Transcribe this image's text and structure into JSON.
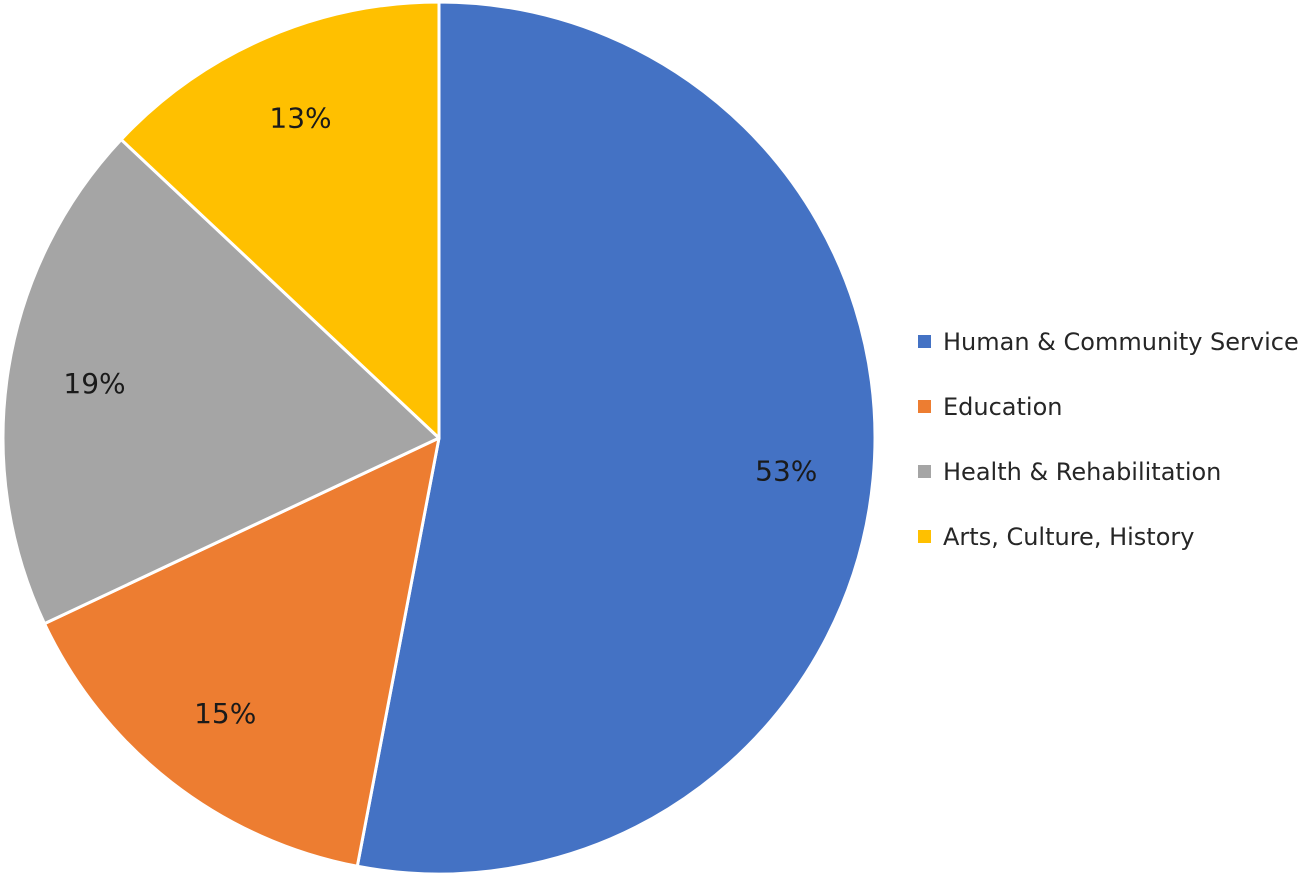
{
  "chart_data": {
    "type": "pie",
    "title": "",
    "start_angle_deg": 0,
    "direction": "clockwise",
    "legend_position": "right",
    "slices": [
      {
        "label": "Human & Community Service",
        "value": 53,
        "display": "53%",
        "color": "#4472C4"
      },
      {
        "label": "Education",
        "value": 15,
        "display": "15%",
        "color": "#ED7D31"
      },
      {
        "label": "Health & Rehabilitation",
        "value": 19,
        "display": "19%",
        "color": "#A5A5A5"
      },
      {
        "label": "Arts, Culture, History",
        "value": 13,
        "display": "13%",
        "color": "#FFC000"
      }
    ]
  },
  "legend": {
    "items": [
      {
        "label": "Human & Community Service",
        "color": "#4472C4"
      },
      {
        "label": "Education",
        "color": "#ED7D31"
      },
      {
        "label": "Health & Rehabilitation",
        "color": "#A5A5A5"
      },
      {
        "label": "Arts, Culture, History",
        "color": "#FFC000"
      }
    ]
  }
}
